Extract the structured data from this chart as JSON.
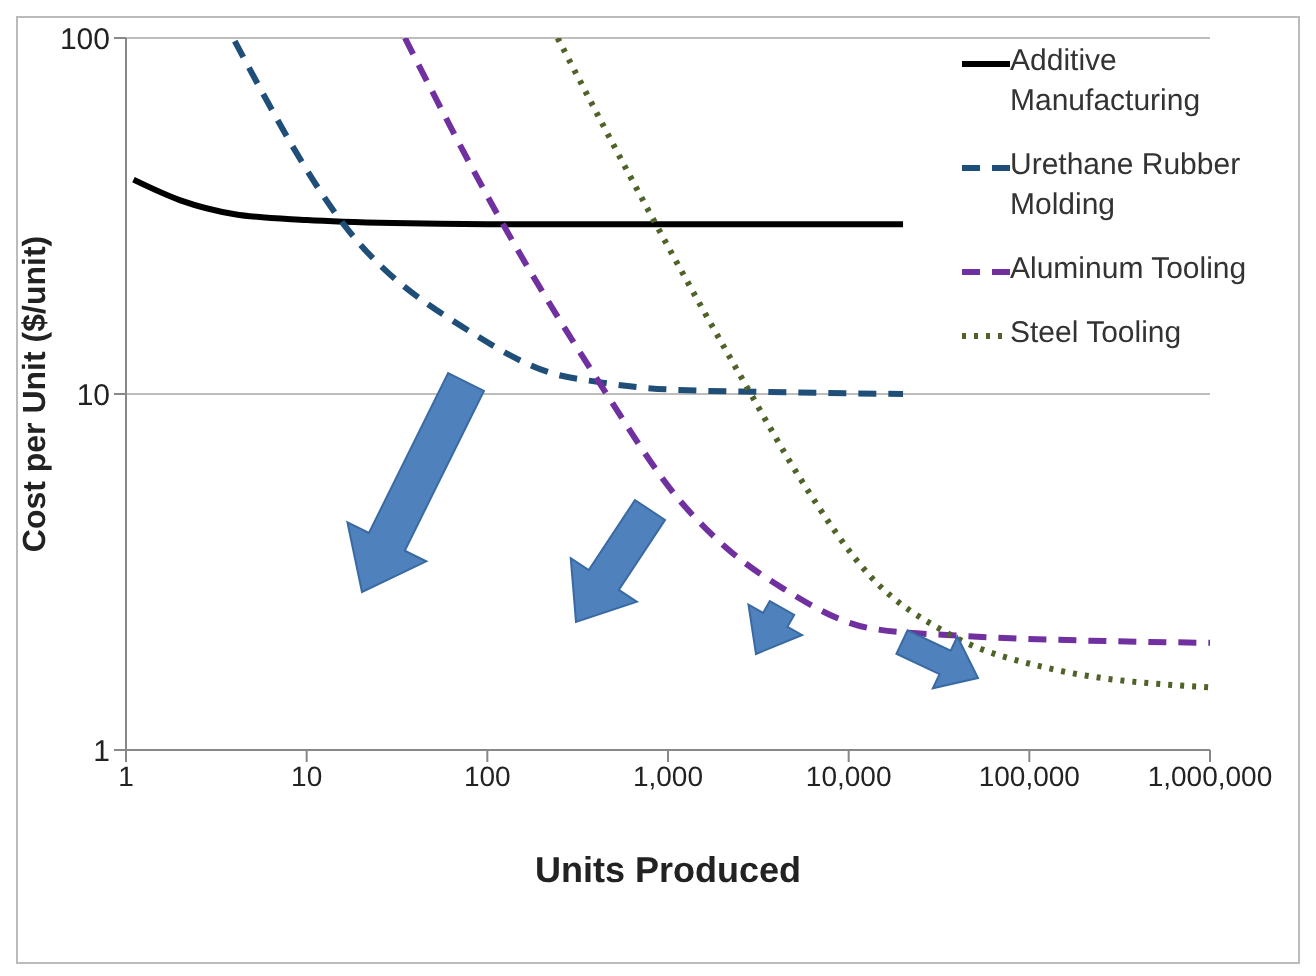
{
  "chart_data": {
    "type": "line",
    "xlabel": "Units Produced",
    "ylabel": "Cost per Unit ($/unit)",
    "log": "xy",
    "grid": "y",
    "legend": "top right",
    "marker": "none",
    "xlim": [
      1,
      1000000
    ],
    "xticks": [
      1,
      10,
      100,
      {
        "value": 1000,
        "label": "1,000"
      },
      {
        "value": 10000,
        "label": "10,000"
      },
      {
        "value": 100000,
        "label": "100,000"
      },
      {
        "value": 1000000,
        "label": "1,000,000"
      }
    ],
    "ylim": [
      1,
      100
    ],
    "yticks": [
      1,
      10,
      100
    ],
    "series": [
      {
        "name": "Additive Manufacturing",
        "color": "#000000",
        "line_style": "solid",
        "x": [
          1.1,
          2,
          4,
          10,
          30,
          100,
          1000,
          20000
        ],
        "values": [
          40,
          35,
          32,
          30.8,
          30.2,
          30,
          30,
          30
        ]
      },
      {
        "name": "Urethane Rubber Molding",
        "color": "#1f4e79",
        "line_style": "dashed",
        "x": [
          4,
          16,
          87,
          220,
          415,
          1000,
          5000,
          20000
        ],
        "values": [
          98,
          30,
          14.6,
          11.5,
          10.8,
          10.3,
          10.1,
          10
        ]
      },
      {
        "name": "Aluminum Tooling",
        "color": "#7030a0",
        "line_style": "dashed",
        "x": [
          35,
          122,
          415,
          1170,
          2100,
          4300,
          13000,
          37000,
          1000000
        ],
        "values": [
          100,
          30,
          10.8,
          5,
          3.7,
          2.85,
          2.2,
          2.1,
          2
        ]
      },
      {
        "name": "Steel Tooling",
        "color": "#4f6228",
        "line_style": "dotted",
        "x": [
          245,
          810,
          2750,
          5500,
          13000,
          37000,
          126000,
          1000000
        ],
        "values": [
          100,
          31.6,
          10.4,
          5.7,
          3.1,
          2.1,
          1.7,
          1.5
        ]
      }
    ]
  }
}
